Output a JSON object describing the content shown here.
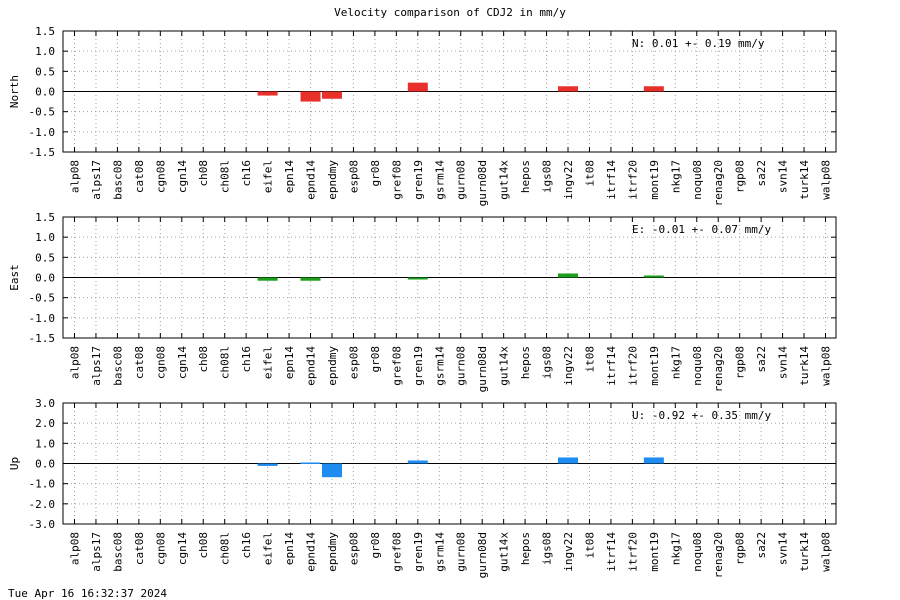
{
  "title": "Velocity comparison of CDJ2 in mm/y",
  "timestamp": "Tue Apr 16 16:32:37 2024",
  "chart_data": [
    {
      "type": "bar",
      "ylabel": "North",
      "ylim": [
        -1.5,
        1.5
      ],
      "yticks": [
        "1.5",
        "1.0",
        "0.5",
        "0.0",
        "-0.5",
        "-1.0",
        "-1.5"
      ],
      "grid": true,
      "color": "#e8302a",
      "annotation": "N:   0.01 +-  0.19 mm/y",
      "categories": [
        "alp08",
        "alps17",
        "basc08",
        "cat08",
        "cgn08",
        "cgn14",
        "ch08",
        "ch08l",
        "ch16",
        "eifel",
        "epn14",
        "epnd14",
        "epndmy",
        "esp08",
        "gr08",
        "gref08",
        "gren19",
        "gsrm14",
        "gurn08",
        "gurn08d",
        "gut14x",
        "hepos",
        "igs08",
        "ingv22",
        "it08",
        "itrf14",
        "itrf20",
        "mont19",
        "nkg17",
        "noqu08",
        "renag20",
        "rgp08",
        "sa22",
        "svn14",
        "turk14",
        "walp08"
      ],
      "values": [
        0,
        0,
        0,
        0,
        0,
        0,
        0,
        0,
        0,
        -0.1,
        0,
        -0.25,
        -0.18,
        0,
        0,
        0,
        0.22,
        0,
        0,
        0,
        0,
        0,
        0,
        0.13,
        0,
        0,
        0,
        0.13,
        0,
        0,
        0,
        0,
        0,
        0,
        0,
        0
      ]
    },
    {
      "type": "bar",
      "ylabel": "East",
      "ylim": [
        -1.5,
        1.5
      ],
      "yticks": [
        "1.5",
        "1.0",
        "0.5",
        "0.0",
        "-0.5",
        "-1.0",
        "-1.5"
      ],
      "grid": true,
      "color": "#1ea01e",
      "annotation": "E:  -0.01 +-  0.07 mm/y",
      "categories": [
        "alp08",
        "alps17",
        "basc08",
        "cat08",
        "cgn08",
        "cgn14",
        "ch08",
        "ch08l",
        "ch16",
        "eifel",
        "epn14",
        "epnd14",
        "epndmy",
        "esp08",
        "gr08",
        "gref08",
        "gren19",
        "gsrm14",
        "gurn08",
        "gurn08d",
        "gut14x",
        "hepos",
        "igs08",
        "ingv22",
        "it08",
        "itrf14",
        "itrf20",
        "mont19",
        "nkg17",
        "noqu08",
        "renag20",
        "rgp08",
        "sa22",
        "svn14",
        "turk14",
        "walp08"
      ],
      "values": [
        0,
        0,
        0,
        0,
        0,
        0,
        0,
        0,
        0,
        -0.08,
        0,
        -0.08,
        0,
        0,
        0,
        0,
        -0.05,
        0,
        0,
        0,
        0,
        0,
        0,
        0.1,
        0,
        0,
        0,
        0.05,
        0,
        0,
        0,
        0,
        0,
        0,
        0,
        0
      ]
    },
    {
      "type": "bar",
      "ylabel": "Up",
      "ylim": [
        -3.0,
        3.0
      ],
      "yticks": [
        "3.0",
        "2.0",
        "1.0",
        "0.0",
        "-1.0",
        "-2.0",
        "-3.0"
      ],
      "grid": true,
      "color": "#1e8cf0",
      "annotation": "U:  -0.92 +-  0.35 mm/y",
      "categories": [
        "alp08",
        "alps17",
        "basc08",
        "cat08",
        "cgn08",
        "cgn14",
        "ch08",
        "ch08l",
        "ch16",
        "eifel",
        "epn14",
        "epnd14",
        "epndmy",
        "esp08",
        "gr08",
        "gref08",
        "gren19",
        "gsrm14",
        "gurn08",
        "gurn08d",
        "gut14x",
        "hepos",
        "igs08",
        "ingv22",
        "it08",
        "itrf14",
        "itrf20",
        "mont19",
        "nkg17",
        "noqu08",
        "renag20",
        "rgp08",
        "sa22",
        "svn14",
        "turk14",
        "walp08"
      ],
      "values": [
        0,
        0,
        0,
        0,
        0,
        0,
        0,
        0,
        0,
        -0.12,
        0,
        0.05,
        -0.68,
        0,
        0,
        0,
        0.15,
        0,
        0,
        0,
        0,
        0,
        0,
        0.3,
        0,
        0,
        0,
        0.3,
        0,
        0,
        0,
        0,
        0,
        0,
        0,
        0
      ]
    }
  ]
}
